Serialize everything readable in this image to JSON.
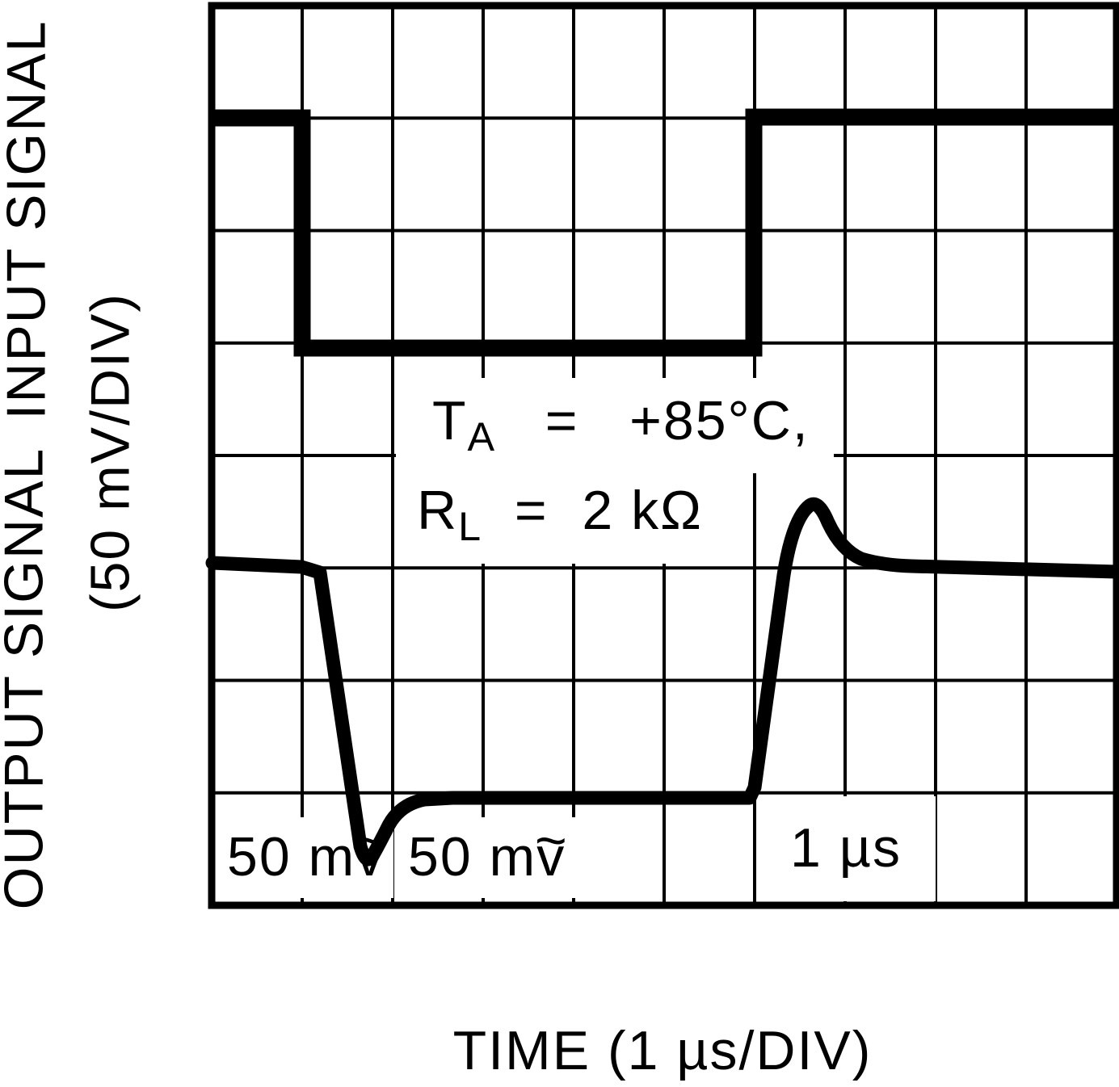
{
  "figure": {
    "background": "#ffffff",
    "ink": "#000000"
  },
  "axis_labels": {
    "left_input": "INPUT SIGNAL",
    "left_units": "(50 mV/DIV)",
    "left_output": "OUTPUT SIGNAL",
    "bottom": "TIME (1 µs/DIV)"
  },
  "annotations": {
    "line1": {
      "base": "T",
      "sub": "A",
      "rest": "   =   +85°C,"
    },
    "line2": {
      "base": "R",
      "sub": "L",
      "rest": "  =  2 kΩ"
    }
  },
  "scale_labels": {
    "undershoot_prefix": "50 m",
    "undershoot_letter": "v",
    "undershoot_tilde": "~",
    "overshoot_prefix": "50 m",
    "overshoot_letter": "v",
    "overshoot_tilde": "~",
    "time_marker": "1 µs"
  },
  "chart_data": {
    "type": "line",
    "title": "",
    "xlabel": "TIME (1 µs/DIV)",
    "ylabel_upper": "INPUT SIGNAL (50 mV/DIV)",
    "ylabel_lower": "OUTPUT SIGNAL (50 mV/DIV)",
    "x_range_divisions": [
      0,
      10
    ],
    "y_range_divisions": [
      0,
      8
    ],
    "grid_divisions": {
      "cols": 10,
      "rows": 8
    },
    "x_scale": "1 µs per division",
    "y_scale": "50 mV per division",
    "conditions": [
      "TA = +85°C,",
      "RL = 2 kΩ"
    ],
    "scale_markers": [
      "50 mṽ",
      "50 mṽ",
      "1 µs"
    ],
    "series": [
      {
        "name": "input-signal",
        "shape": "square-wave",
        "units": "grid divisions from top (y) vs µs (x)",
        "points": [
          [
            0,
            1.0
          ],
          [
            1.0,
            1.0
          ],
          [
            1.0,
            3.05
          ],
          [
            6.0,
            3.05
          ],
          [
            6.0,
            1.0
          ],
          [
            10,
            1.0
          ]
        ]
      },
      {
        "name": "output-signal",
        "shape": "transient-response",
        "units": "grid divisions from top (y) vs µs (x)",
        "points": [
          [
            0,
            4.96
          ],
          [
            1.0,
            5.0
          ],
          [
            1.2,
            5.04
          ],
          [
            1.66,
            7.48
          ],
          [
            1.78,
            7.65
          ],
          [
            1.95,
            7.28
          ],
          [
            2.35,
            7.06
          ],
          [
            6.0,
            7.05
          ],
          [
            6.35,
            5.06
          ],
          [
            6.65,
            4.42
          ],
          [
            6.9,
            4.85
          ],
          [
            7.25,
            4.97
          ],
          [
            7.75,
            4.99
          ],
          [
            10,
            5.04
          ]
        ]
      }
    ],
    "legend": "none",
    "grid": "on"
  }
}
